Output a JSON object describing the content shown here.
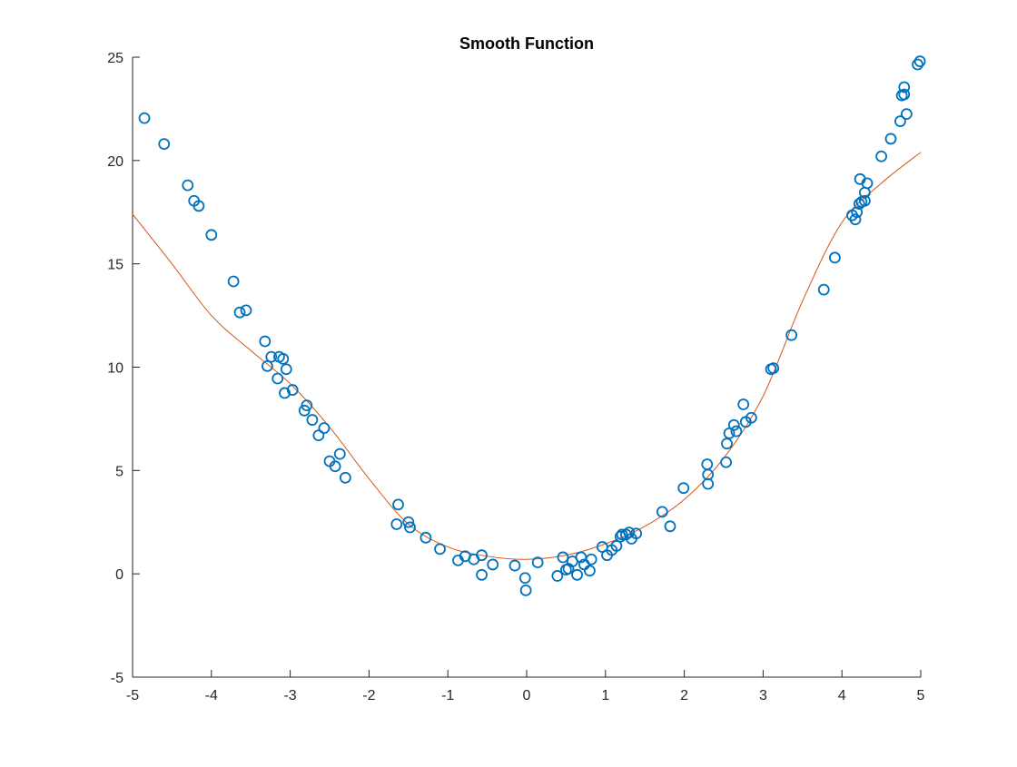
{
  "chart_data": {
    "type": "scatter",
    "title": "Smooth Function",
    "xlabel": "",
    "ylabel": "",
    "xlim": [
      -5,
      5
    ],
    "ylim": [
      -5,
      25
    ],
    "x_ticks": [
      -5,
      -4,
      -3,
      -2,
      -1,
      0,
      1,
      2,
      3,
      4,
      5
    ],
    "y_ticks": [
      -5,
      0,
      5,
      10,
      15,
      20,
      25
    ],
    "x_tick_labels": [
      "-5",
      "-4",
      "-3",
      "-2",
      "-1",
      "0",
      "1",
      "2",
      "3",
      "4",
      "5"
    ],
    "y_tick_labels": [
      "-5",
      "0",
      "5",
      "10",
      "15",
      "20",
      "25"
    ],
    "grid": false,
    "box": false,
    "legend": "none",
    "colors": {
      "scatter": "#0072BD",
      "curve": "#D95319",
      "axis": "#262626"
    },
    "series": [
      {
        "type": "scatter",
        "marker": "circle-open",
        "points": [
          [
            -4.85,
            22.05
          ],
          [
            -4.6,
            20.8
          ],
          [
            -4.3,
            18.8
          ],
          [
            -4.22,
            18.05
          ],
          [
            -4.16,
            17.8
          ],
          [
            -4.0,
            16.4
          ],
          [
            -3.72,
            14.15
          ],
          [
            -3.64,
            12.65
          ],
          [
            -3.56,
            12.75
          ],
          [
            -3.32,
            11.25
          ],
          [
            -3.29,
            10.05
          ],
          [
            -3.24,
            10.5
          ],
          [
            -3.16,
            9.45
          ],
          [
            -3.14,
            10.5
          ],
          [
            -3.09,
            10.4
          ],
          [
            -3.07,
            8.75
          ],
          [
            -3.05,
            9.9
          ],
          [
            -2.97,
            8.9
          ],
          [
            -2.82,
            7.9
          ],
          [
            -2.79,
            8.15
          ],
          [
            -2.72,
            7.45
          ],
          [
            -2.64,
            6.7
          ],
          [
            -2.57,
            7.05
          ],
          [
            -2.5,
            5.45
          ],
          [
            -2.43,
            5.2
          ],
          [
            -2.37,
            5.8
          ],
          [
            -2.3,
            4.65
          ],
          [
            -1.63,
            3.35
          ],
          [
            -1.65,
            2.4
          ],
          [
            -1.5,
            2.5
          ],
          [
            -1.48,
            2.25
          ],
          [
            -1.28,
            1.75
          ],
          [
            -1.1,
            1.2
          ],
          [
            -0.87,
            0.65
          ],
          [
            -0.78,
            0.85
          ],
          [
            -0.67,
            0.7
          ],
          [
            -0.57,
            0.9
          ],
          [
            -0.57,
            -0.05
          ],
          [
            -0.43,
            0.45
          ],
          [
            -0.15,
            0.4
          ],
          [
            -0.02,
            -0.2
          ],
          [
            -0.01,
            -0.8
          ],
          [
            0.14,
            0.55
          ],
          [
            0.39,
            -0.1
          ],
          [
            0.46,
            0.8
          ],
          [
            0.5,
            0.2
          ],
          [
            0.53,
            0.25
          ],
          [
            0.58,
            0.6
          ],
          [
            0.64,
            -0.05
          ],
          [
            0.69,
            0.8
          ],
          [
            0.73,
            0.45
          ],
          [
            0.8,
            0.15
          ],
          [
            0.82,
            0.7
          ],
          [
            0.96,
            1.3
          ],
          [
            1.02,
            0.9
          ],
          [
            1.08,
            1.15
          ],
          [
            1.14,
            1.35
          ],
          [
            1.19,
            1.8
          ],
          [
            1.21,
            1.9
          ],
          [
            1.26,
            1.9
          ],
          [
            1.3,
            2.0
          ],
          [
            1.33,
            1.7
          ],
          [
            1.39,
            1.95
          ],
          [
            1.72,
            3.0
          ],
          [
            1.82,
            2.3
          ],
          [
            1.99,
            4.15
          ],
          [
            2.29,
            5.3
          ],
          [
            2.3,
            4.8
          ],
          [
            2.3,
            4.35
          ],
          [
            2.53,
            5.4
          ],
          [
            2.54,
            6.3
          ],
          [
            2.57,
            6.8
          ],
          [
            2.63,
            7.2
          ],
          [
            2.66,
            6.9
          ],
          [
            2.75,
            8.2
          ],
          [
            2.78,
            7.35
          ],
          [
            2.85,
            7.55
          ],
          [
            3.1,
            9.9
          ],
          [
            3.13,
            9.95
          ],
          [
            3.36,
            11.55
          ],
          [
            3.77,
            13.75
          ],
          [
            3.91,
            15.3
          ],
          [
            4.13,
            17.35
          ],
          [
            4.17,
            17.15
          ],
          [
            4.19,
            17.5
          ],
          [
            4.22,
            17.9
          ],
          [
            4.25,
            18.0
          ],
          [
            4.29,
            18.05
          ],
          [
            4.23,
            19.1
          ],
          [
            4.29,
            18.45
          ],
          [
            4.32,
            18.9
          ],
          [
            4.5,
            20.2
          ],
          [
            4.62,
            21.05
          ],
          [
            4.74,
            21.9
          ],
          [
            4.76,
            23.15
          ],
          [
            4.79,
            23.55
          ],
          [
            4.79,
            23.2
          ],
          [
            4.82,
            22.25
          ],
          [
            4.96,
            24.65
          ],
          [
            4.99,
            24.8
          ]
        ]
      },
      {
        "type": "line",
        "points": [
          [
            -5.0,
            17.4
          ],
          [
            -4.5,
            15.0
          ],
          [
            -4.0,
            12.5
          ],
          [
            -3.5,
            10.8
          ],
          [
            -3.0,
            9.2
          ],
          [
            -2.5,
            7.1
          ],
          [
            -2.0,
            4.6
          ],
          [
            -1.5,
            2.4
          ],
          [
            -1.0,
            1.3
          ],
          [
            -0.5,
            0.85
          ],
          [
            0.0,
            0.7
          ],
          [
            0.5,
            0.9
          ],
          [
            1.0,
            1.45
          ],
          [
            1.5,
            2.3
          ],
          [
            2.0,
            3.6
          ],
          [
            2.5,
            5.6
          ],
          [
            3.0,
            8.6
          ],
          [
            3.5,
            13.2
          ],
          [
            4.0,
            17.0
          ],
          [
            4.5,
            18.9
          ],
          [
            5.0,
            20.4
          ]
        ]
      }
    ]
  }
}
